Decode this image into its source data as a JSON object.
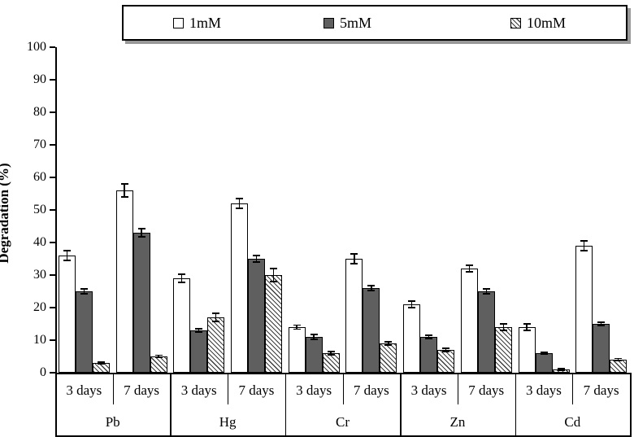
{
  "chart_data": {
    "type": "bar",
    "title": "",
    "ylabel": "Degradation (%)",
    "xlabel": "",
    "ylim": [
      0,
      100
    ],
    "yticks": [
      0,
      10,
      20,
      30,
      40,
      50,
      60,
      70,
      80,
      90,
      100
    ],
    "grid": false,
    "legend_position": "top-boxed-shadow",
    "series": [
      {
        "name": "1mM",
        "style": "open"
      },
      {
        "name": "5mM",
        "style": "solid"
      },
      {
        "name": "10mM",
        "style": "hatched"
      }
    ],
    "groups": [
      {
        "metal": "Pb",
        "subgroups": [
          {
            "label": "3 days",
            "values": [
              36,
              25,
              3
            ],
            "errors": [
              1.5,
              0.8,
              0.3
            ]
          },
          {
            "label": "7 days",
            "values": [
              56,
              43,
              5
            ],
            "errors": [
              2.0,
              1.2,
              0.4
            ]
          }
        ]
      },
      {
        "metal": "Hg",
        "subgroups": [
          {
            "label": "3 days",
            "values": [
              29,
              13,
              17
            ],
            "errors": [
              1.2,
              0.5,
              1.2
            ]
          },
          {
            "label": "7 days",
            "values": [
              52,
              35,
              30
            ],
            "errors": [
              1.5,
              1.0,
              2.0
            ]
          }
        ]
      },
      {
        "metal": "Cr",
        "subgroups": [
          {
            "label": "3 days",
            "values": [
              14,
              11,
              6
            ],
            "errors": [
              0.6,
              0.8,
              0.5
            ]
          },
          {
            "label": "7 days",
            "values": [
              35,
              26,
              9
            ],
            "errors": [
              1.5,
              0.8,
              0.5
            ]
          }
        ]
      },
      {
        "metal": "Zn",
        "subgroups": [
          {
            "label": "3 days",
            "values": [
              21,
              11,
              7
            ],
            "errors": [
              1.0,
              0.5,
              0.5
            ]
          },
          {
            "label": "7 days",
            "values": [
              32,
              25,
              14
            ],
            "errors": [
              1.0,
              0.8,
              1.0
            ]
          }
        ]
      },
      {
        "metal": "Cd",
        "subgroups": [
          {
            "label": "3 days",
            "values": [
              14,
              6,
              1
            ],
            "errors": [
              1.0,
              0.3,
              0.2
            ]
          },
          {
            "label": "7 days",
            "values": [
              39,
              15,
              4
            ],
            "errors": [
              1.5,
              0.5,
              0.4
            ]
          }
        ]
      }
    ],
    "colors": {
      "bar_open_fill": "#ffffff",
      "bar_solid_fill": "#5f5f5f",
      "bar_hatch_line": "#3c3c3c",
      "bar_border": "#000000",
      "axis": "#000000",
      "legend_shadow": "#999999",
      "background": "#ffffff"
    }
  }
}
